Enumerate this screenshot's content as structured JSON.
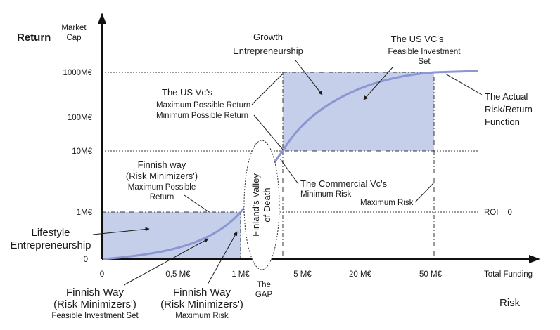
{
  "labels": {
    "return_axis": "Return",
    "market_cap_1": "Market",
    "market_cap_2": "Cap",
    "risk_axis": "Risk",
    "total_funding": "Total Funding",
    "roi": "ROI = 0",
    "gap_1": "The",
    "gap_2": "GAP",
    "valley_1": "Finland's Valley",
    "valley_2": "of Death"
  },
  "y_ticks": [
    "1000M€",
    "100M€",
    "10M€",
    "1M€",
    "0"
  ],
  "x_ticks": [
    "0",
    "0,5 M€",
    "1 M€",
    "5 M€",
    "20 M€",
    "50 M€"
  ],
  "annotations": {
    "growth": [
      "Growth",
      "Entrepreneurship"
    ],
    "us_vc_set": [
      "The US VC's",
      "Feasible Investment",
      "Set"
    ],
    "us_vc_return": [
      "The US Vc's",
      "Maximum Possible Return",
      "Minimum Possible Return"
    ],
    "actual": [
      "The Actual",
      "Risk/Return",
      "Function"
    ],
    "finnish_way": [
      "Finnish way",
      "(Risk Minimizers')",
      "Maximum Possible",
      "Return"
    ],
    "commercial": [
      "The Commercial Vc's",
      "Minimum Risk"
    ],
    "max_risk": "Maximum Risk",
    "lifestyle": [
      "Lifestyle",
      "Entrepreneurship"
    ],
    "finnish_set": [
      "Finnish Way",
      "(Risk Minimizers')",
      "Feasible Investment Set"
    ],
    "finnish_risk": [
      "Finnish Way",
      "(Risk Minimizers')",
      "Maximum Risk"
    ]
  },
  "colors": {
    "curve": "#8a97d2",
    "box_fill": "#c5cfe9",
    "axis": "#111111"
  }
}
